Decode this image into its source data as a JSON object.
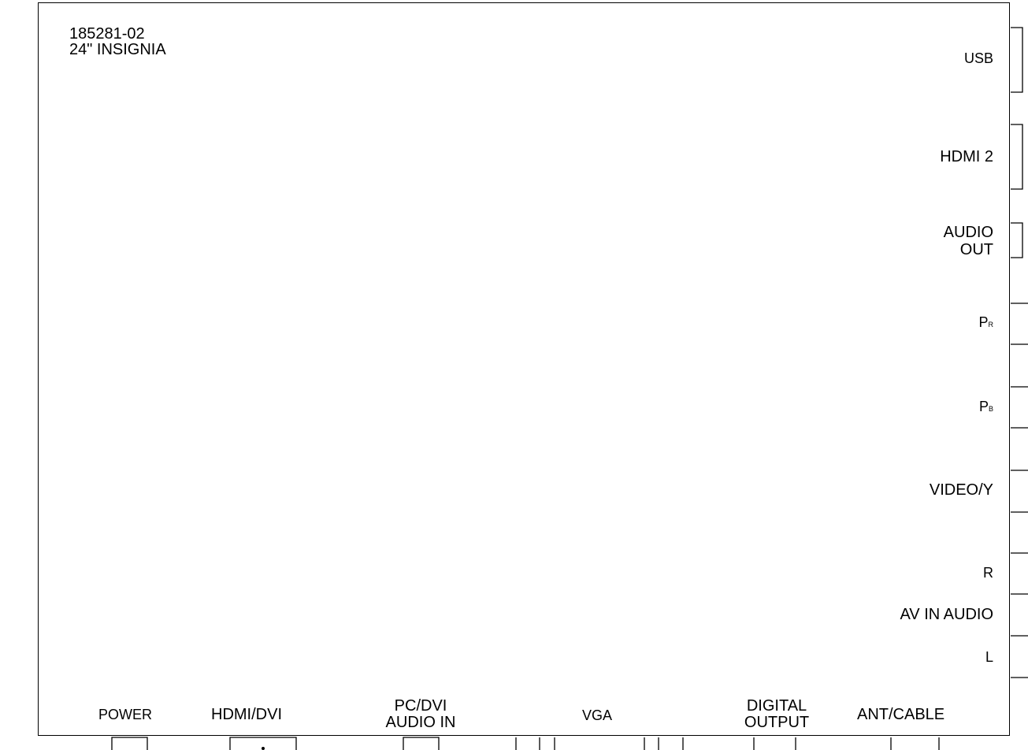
{
  "model": {
    "part_number": "185281-02",
    "name": "24\" INSIGNIA"
  },
  "right_labels": {
    "usb": "USB",
    "hdmi2": "HDMI 2",
    "audio_out_1": "AUDIO",
    "audio_out_2": "OUT",
    "pr_main": "P",
    "pr_sub": "R",
    "pb_main": "P",
    "pb_sub": "B",
    "video_y": "VIDEO/Y",
    "r": "R",
    "av_in_audio": "AV IN AUDIO",
    "l": "L"
  },
  "bottom_labels": {
    "power": "POWER",
    "hdmi_dvi": "HDMI/DVI",
    "pc_dvi_1": "PC/DVI",
    "pc_dvi_2": "AUDIO IN",
    "vga": "VGA",
    "digital_1": "DIGITAL",
    "digital_2": "OUTPUT",
    "ant_cable": "ANT/CABLE"
  }
}
